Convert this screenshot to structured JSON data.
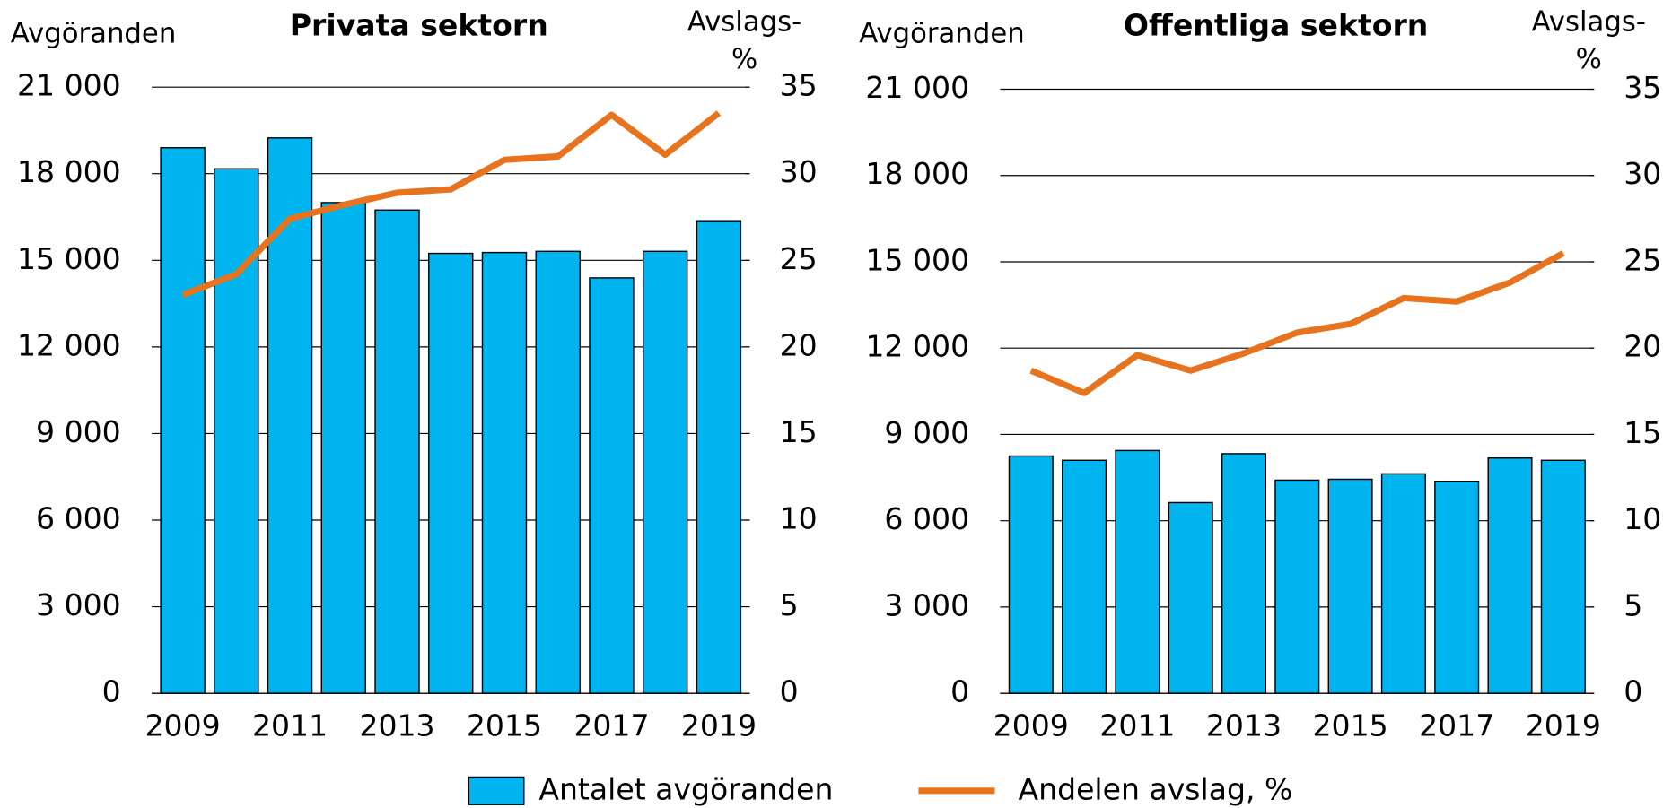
{
  "chart_data": [
    {
      "type": "bar",
      "title": "Privata sektorn",
      "y_label": "Avgöranden",
      "y2_label": [
        "Avslags-",
        "%"
      ],
      "categories": [
        "2009",
        null,
        "2011",
        null,
        "2013",
        null,
        "2015",
        null,
        "2017",
        null,
        "2019"
      ],
      "series": [
        {
          "name": "Antalet avgöranden",
          "type": "bar",
          "color": "#00b4f0",
          "values": [
            18900,
            18170,
            19240,
            17000,
            16740,
            15240,
            15270,
            15310,
            14390,
            15310,
            16370
          ]
        },
        {
          "name": "Andelen avslag, %",
          "type": "line",
          "axis": "y2",
          "color": "#e8731e",
          "values": [
            23.0,
            24.2,
            27.4,
            28.2,
            28.9,
            29.1,
            30.8,
            31.0,
            33.4,
            31.1,
            33.5
          ]
        }
      ],
      "ylim": [
        0,
        21000
      ],
      "yticks": [
        {
          "value": 0,
          "label": "0"
        },
        {
          "value": 3000,
          "label": "3 000"
        },
        {
          "value": 6000,
          "label": "6 000"
        },
        {
          "value": 9000,
          "label": "9 000"
        },
        {
          "value": 12000,
          "label": "12 000"
        },
        {
          "value": 15000,
          "label": "15 000"
        },
        {
          "value": 18000,
          "label": "18 000"
        },
        {
          "value": 21000,
          "label": "21 000"
        }
      ],
      "y2lim": [
        0,
        35
      ],
      "y2ticks": [
        0,
        5,
        10,
        15,
        20,
        25,
        30,
        35
      ],
      "grid": true
    },
    {
      "type": "bar",
      "title": "Offentliga sektorn",
      "y_label": "Avgöranden",
      "y2_label": [
        "Avslags-",
        "%"
      ],
      "categories": [
        "2009",
        null,
        "2011",
        null,
        "2013",
        null,
        "2015",
        null,
        "2017",
        null,
        "2019"
      ],
      "series": [
        {
          "name": "Antalet avgöranden",
          "type": "bar",
          "color": "#00b4f0",
          "values": [
            8250,
            8100,
            8440,
            6630,
            8330,
            7410,
            7440,
            7630,
            7370,
            8180,
            8100
          ]
        },
        {
          "name": "Andelen avslag, %",
          "type": "line",
          "axis": "y2",
          "color": "#e8731e",
          "values": [
            18.7,
            17.4,
            19.6,
            18.7,
            19.7,
            20.9,
            21.4,
            22.9,
            22.7,
            23.8,
            25.5
          ]
        }
      ],
      "ylim": [
        0,
        21000
      ],
      "yticks": [
        {
          "value": 0,
          "label": "0"
        },
        {
          "value": 3000,
          "label": "3 000"
        },
        {
          "value": 6000,
          "label": "6 000"
        },
        {
          "value": 9000,
          "label": "9 000"
        },
        {
          "value": 12000,
          "label": "12 000"
        },
        {
          "value": 15000,
          "label": "15 000"
        },
        {
          "value": 18000,
          "label": "18 000"
        },
        {
          "value": 21000,
          "label": "21 000"
        }
      ],
      "y2lim": [
        0,
        35
      ],
      "y2ticks": [
        0,
        5,
        10,
        15,
        20,
        25,
        30,
        35
      ],
      "grid": true
    }
  ]
}
